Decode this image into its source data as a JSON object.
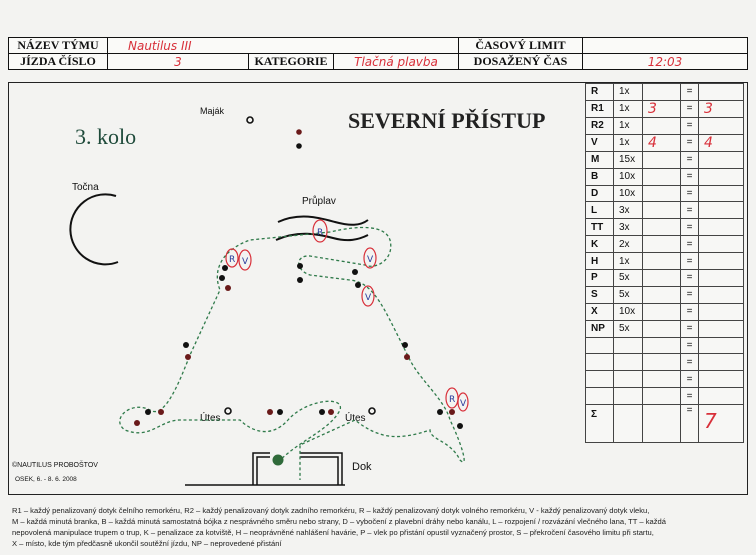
{
  "header": {
    "team_name_label": "NÁZEV TÝMU",
    "team_name_value": "Nautilus III",
    "ride_number_label": "JÍZDA ČÍSLO",
    "ride_number_value": "3",
    "category_label": "KATEGORIE",
    "category_value": "Tlačná plavba",
    "time_limit_label": "ČASOVÝ LIMIT",
    "time_limit_value": "",
    "achieved_time_label": "DOSAŽENÝ ČAS",
    "achieved_time_value": "12:03"
  },
  "map": {
    "round": "3. kolo",
    "title": "SEVERNÍ PŘÍSTUP",
    "labels": {
      "lighthouse": "Maják",
      "turntable": "Točna",
      "canal": "Průplav",
      "reef1": "Útes",
      "reef2": "Útes",
      "dock": "Dok"
    },
    "annotations": [
      "R",
      "V",
      "R",
      "V",
      "V",
      "R",
      "V"
    ],
    "copyright": "©NAUTILUS PROBOŠTOV",
    "event": "OSEK, 6. - 8. 6. 2008",
    "route_color": "#2f7a4a",
    "penalty_ink": "#d8303a"
  },
  "scores": {
    "rows": [
      {
        "code": "R",
        "mult": "1x",
        "count": "",
        "eq": "=",
        "result": ""
      },
      {
        "code": "R1",
        "mult": "1x",
        "count": "3",
        "eq": "=",
        "result": "3"
      },
      {
        "code": "R2",
        "mult": "1x",
        "count": "",
        "eq": "=",
        "result": ""
      },
      {
        "code": "V",
        "mult": "1x",
        "count": "4",
        "eq": "=",
        "result": "4"
      },
      {
        "code": "M",
        "mult": "15x",
        "count": "",
        "eq": "=",
        "result": ""
      },
      {
        "code": "B",
        "mult": "10x",
        "count": "",
        "eq": "=",
        "result": ""
      },
      {
        "code": "D",
        "mult": "10x",
        "count": "",
        "eq": "=",
        "result": ""
      },
      {
        "code": "L",
        "mult": "3x",
        "count": "",
        "eq": "=",
        "result": ""
      },
      {
        "code": "TT",
        "mult": "3x",
        "count": "",
        "eq": "=",
        "result": ""
      },
      {
        "code": "K",
        "mult": "2x",
        "count": "",
        "eq": "=",
        "result": ""
      },
      {
        "code": "H",
        "mult": "1x",
        "count": "",
        "eq": "=",
        "result": ""
      },
      {
        "code": "P",
        "mult": "5x",
        "count": "",
        "eq": "=",
        "result": ""
      },
      {
        "code": "S",
        "mult": "5x",
        "count": "",
        "eq": "=",
        "result": ""
      },
      {
        "code": "X",
        "mult": "10x",
        "count": "",
        "eq": "=",
        "result": ""
      },
      {
        "code": "NP",
        "mult": "5x",
        "count": "",
        "eq": "=",
        "result": ""
      },
      {
        "code": "",
        "mult": "",
        "count": "",
        "eq": "=",
        "result": ""
      },
      {
        "code": "",
        "mult": "",
        "count": "",
        "eq": "=",
        "result": ""
      },
      {
        "code": "",
        "mult": "",
        "count": "",
        "eq": "=",
        "result": ""
      },
      {
        "code": "",
        "mult": "",
        "count": "",
        "eq": "=",
        "result": ""
      }
    ],
    "sum": {
      "code": "Σ",
      "eq": "=",
      "result": "7"
    }
  },
  "legend": [
    "R1 – každý penalizovaný dotyk čelního remorkéru, R2 – každý penalizovaný dotyk zadního remorkéru, R – každý penalizovaný dotyk volného remorkéru, V - každý penalizovaný dotyk vleku,",
    "M – každá minutá branka, B – každá minutá samostatná bójka z nesprávného směru nebo strany, D – vybočení z plavební dráhy nebo kanálu, L – rozpojení / rozvázání vlečného lana, TT – každá",
    "nepovolená manipulace trupem o trup, K – penalizace za kotviště, H – neoprávněné nahlášení havárie, P – vlek po přistání opustil vyznačený prostor, S – překročení časového limitu při startu,",
    "X – místo, kde tým předčasně ukončil soutěžní jízdu, NP – neprovedené přistání"
  ]
}
